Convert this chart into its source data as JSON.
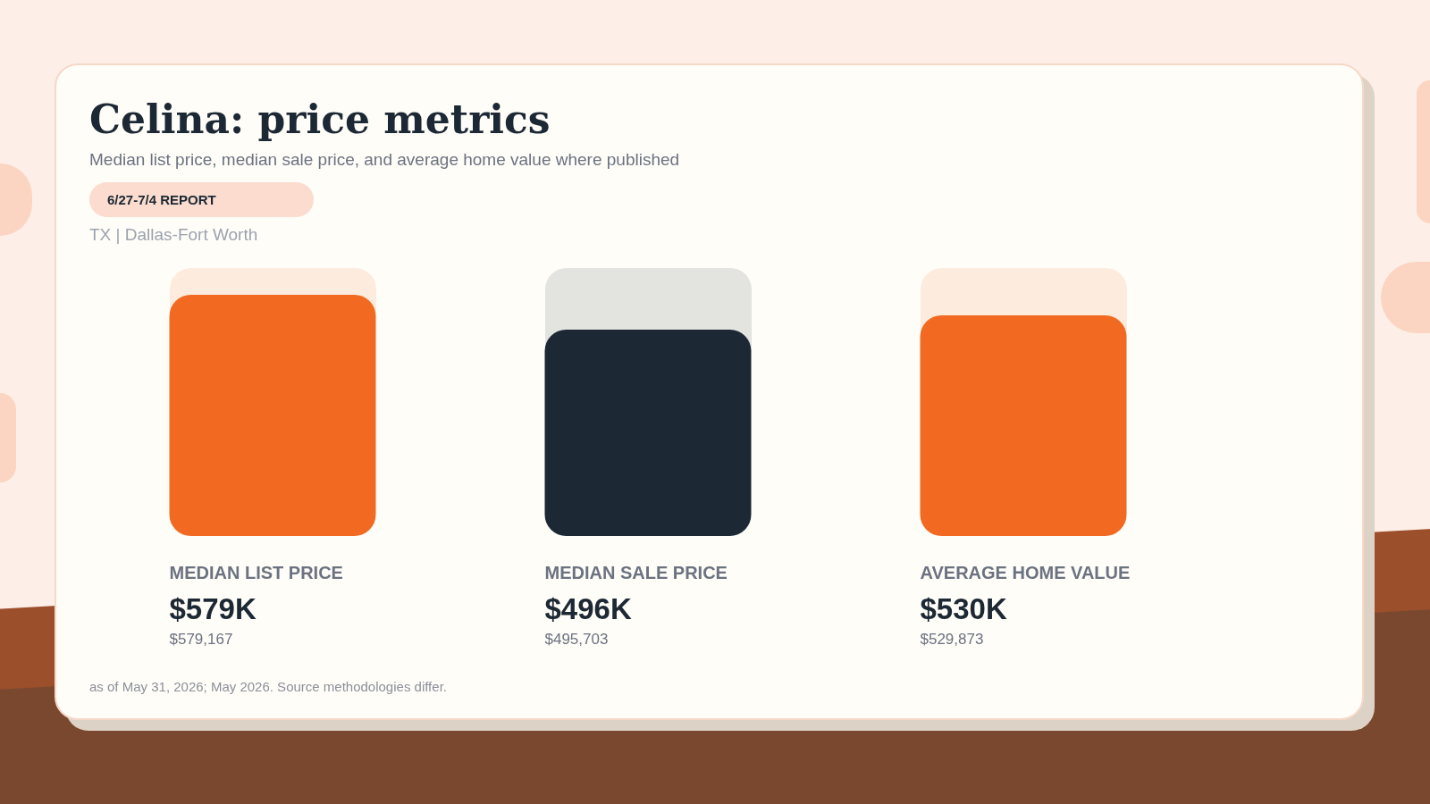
{
  "chart_data": {
    "type": "bar",
    "title": "Celina: price metrics",
    "subtitle": "Median list price, median sale price, and average home value where published",
    "categories": [
      "MEDIAN LIST PRICE",
      "MEDIAN SALE PRICE",
      "AVERAGE HOME VALUE"
    ],
    "values": [
      579167,
      495703,
      529873
    ],
    "colors": [
      "#f26a21",
      "#1c2834",
      "#f26a21"
    ],
    "value_labels": [
      "$579K",
      "$496K",
      "$530K"
    ],
    "tick_labels": false,
    "legend": false,
    "annotations": [
      "6/27-7/4 REPORT",
      "TX | Dallas-Fort Worth",
      "$579,167",
      "$495,703",
      "$529,873",
      "as of May 31, 2026; May 2026. Source methodologies differ."
    ]
  }
}
